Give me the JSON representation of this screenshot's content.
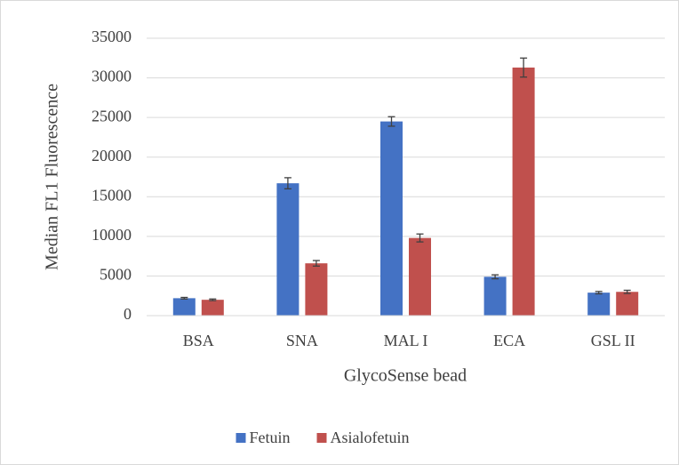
{
  "chart_data": {
    "type": "bar",
    "x_label": "GlycoSense bead",
    "y_label": "Median FL1 Fluorescence",
    "categories": [
      "BSA",
      "SNA",
      "MAL I",
      "ECA",
      "GSL II"
    ],
    "series": [
      {
        "name": "Fetuin",
        "color": "#4472c4",
        "values": [
          2200,
          16700,
          24500,
          4900,
          2900
        ],
        "errors": [
          100,
          700,
          600,
          250,
          150
        ]
      },
      {
        "name": "Asialofetuin",
        "color": "#c0504d",
        "values": [
          2000,
          6600,
          9800,
          31300,
          3000
        ],
        "errors": [
          100,
          350,
          500,
          1200,
          200
        ]
      }
    ],
    "ylim": [
      0,
      35000
    ],
    "yticks": [
      0,
      5000,
      10000,
      15000,
      20000,
      25000,
      30000,
      35000
    ],
    "grid": true,
    "legend": "bottom"
  }
}
